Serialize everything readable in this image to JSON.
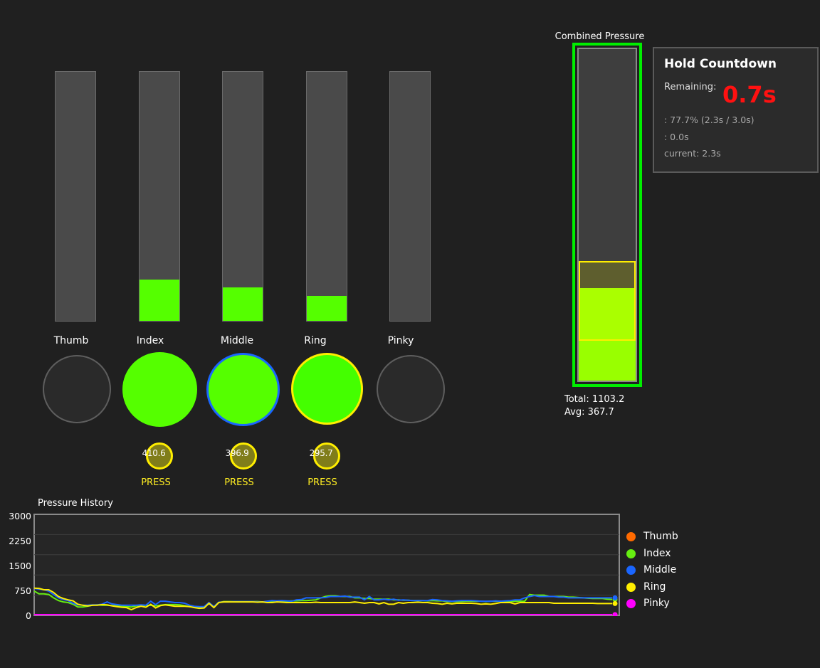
{
  "fingers": [
    {
      "name": "Thumb",
      "fill": 0.0,
      "active": false,
      "pressure": null,
      "state": null
    },
    {
      "name": "Index",
      "fill": 0.167,
      "active": true,
      "pressure": "410.6",
      "state": "PRESS"
    },
    {
      "name": "Middle",
      "fill": 0.133,
      "active": true,
      "pressure": "396.9",
      "state": "PRESS"
    },
    {
      "name": "Ring",
      "fill": 0.1,
      "active": true,
      "pressure": "295.7",
      "state": "PRESS"
    }
  ],
  "pinky": {
    "name": "Pinky",
    "fill": 0.0,
    "active": false
  },
  "combined": {
    "title": "Combined Pressure",
    "total_label": "Total: 1103.2",
    "avg_label": "Avg: 367.7",
    "fill_fraction": 0.28,
    "band_low": 0.12,
    "band_high": 0.36
  },
  "countdown": {
    "title": "Hold Countdown",
    "remaining_label": "Remaining:",
    "remaining_value": "0.7s",
    "progress_line": ": 77.7% (2.3s / 3.0s)",
    "line2": ": 0.0s",
    "current_line": "current: 2.3s"
  },
  "colors": {
    "active_fill": "#55ff00",
    "thumb": "#ff6a00",
    "index": "#66ee11",
    "middle": "#1a66ff",
    "ring": "#ffee00",
    "pinky": "#ff00ff",
    "alert": "#ff1111"
  },
  "chart_data": {
    "type": "line",
    "title": "Pressure History",
    "xlabel": "",
    "ylabel": "",
    "ylim": [
      0,
      3000
    ],
    "yticks": [
      "3000",
      "2250",
      "1500",
      "750",
      "0"
    ],
    "grid": true,
    "legend_position": "right",
    "series": [
      {
        "name": "Thumb",
        "color": "#ff6a00",
        "values": [
          0,
          0,
          0,
          0,
          0,
          0,
          0,
          0,
          0,
          0,
          0,
          0,
          0,
          0,
          0,
          0,
          0,
          0,
          0,
          0,
          0,
          0,
          0,
          0,
          0,
          0,
          0,
          0,
          0,
          0,
          0,
          0,
          0,
          0,
          0,
          0,
          0,
          0,
          0,
          0,
          0,
          0,
          0,
          0,
          0,
          0,
          0,
          0,
          0,
          0,
          0,
          0,
          0,
          0,
          0,
          0,
          0,
          0,
          0,
          0,
          0,
          0,
          0,
          0,
          0,
          0,
          0,
          0,
          0,
          0,
          0,
          0,
          0,
          0,
          0,
          0,
          0,
          0,
          0,
          0,
          0,
          0,
          0,
          0,
          0,
          0,
          0,
          0,
          0,
          0,
          0,
          0,
          0,
          0,
          0,
          0,
          0,
          0,
          0,
          0,
          0,
          0,
          0,
          0,
          0,
          0,
          0,
          0,
          0,
          0,
          0,
          0,
          0,
          0,
          0,
          0,
          0,
          0,
          0,
          0
        ]
      },
      {
        "name": "Index",
        "color": "#66ee11",
        "values": [
          720,
          640,
          640,
          620,
          520,
          440,
          400,
          380,
          330,
          250,
          250,
          270,
          300,
          310,
          300,
          300,
          290,
          280,
          270,
          260,
          250,
          280,
          280,
          290,
          300,
          280,
          300,
          320,
          320,
          320,
          310,
          290,
          260,
          250,
          240,
          250,
          350,
          260,
          380,
          410,
          410,
          410,
          410,
          410,
          410,
          410,
          410,
          400,
          400,
          410,
          410,
          420,
          420,
          430,
          430,
          440,
          440,
          450,
          460,
          520,
          560,
          580,
          580,
          560,
          560,
          560,
          520,
          520,
          500,
          500,
          480,
          480,
          480,
          480,
          460,
          460,
          450,
          450,
          440,
          440,
          440,
          430,
          440,
          430,
          430,
          410,
          410,
          410,
          410,
          420,
          420,
          420,
          420,
          410,
          420,
          420,
          420,
          420,
          410,
          420,
          420,
          420,
          620,
          600,
          600,
          600,
          560,
          560,
          560,
          560,
          540,
          540,
          530,
          520,
          510,
          500,
          500,
          500,
          480,
          470
        ]
      },
      {
        "name": "Middle",
        "color": "#1a66ff",
        "values": [
          800,
          780,
          760,
          720,
          620,
          520,
          470,
          440,
          360,
          310,
          300,
          300,
          310,
          310,
          330,
          400,
          340,
          320,
          300,
          300,
          300,
          300,
          310,
          300,
          420,
          320,
          420,
          420,
          400,
          380,
          380,
          360,
          300,
          270,
          260,
          260,
          380,
          260,
          390,
          400,
          400,
          410,
          410,
          410,
          410,
          410,
          400,
          400,
          420,
          440,
          430,
          440,
          430,
          420,
          460,
          470,
          520,
          520,
          520,
          520,
          530,
          560,
          560,
          560,
          570,
          540,
          540,
          540,
          460,
          560,
          460,
          460,
          480,
          460,
          480,
          450,
          460,
          450,
          440,
          440,
          440,
          440,
          470,
          460,
          440,
          430,
          420,
          430,
          440,
          440,
          440,
          430,
          420,
          420,
          420,
          430,
          420,
          430,
          440,
          460,
          460,
          520,
          560,
          590,
          560,
          560,
          560,
          560,
          540,
          540,
          520,
          520,
          520,
          520,
          520,
          520,
          520,
          520,
          520,
          520
        ]
      },
      {
        "name": "Ring",
        "color": "#ffee00",
        "values": [
          810,
          800,
          760,
          760,
          680,
          560,
          500,
          460,
          430,
          330,
          300,
          280,
          300,
          300,
          320,
          310,
          280,
          260,
          240,
          230,
          170,
          230,
          270,
          240,
          330,
          220,
          290,
          310,
          290,
          270,
          270,
          270,
          260,
          230,
          210,
          220,
          360,
          230,
          380,
          400,
          400,
          400,
          400,
          400,
          400,
          400,
          390,
          400,
          380,
          380,
          400,
          390,
          380,
          380,
          380,
          380,
          380,
          380,
          390,
          380,
          380,
          380,
          380,
          380,
          380,
          380,
          400,
          380,
          360,
          380,
          380,
          340,
          380,
          330,
          330,
          380,
          360,
          380,
          380,
          390,
          380,
          380,
          360,
          350,
          330,
          360,
          340,
          360,
          360,
          360,
          360,
          350,
          330,
          340,
          330,
          350,
          380,
          380,
          380,
          340,
          380,
          380,
          380,
          380,
          380,
          380,
          380,
          360,
          360,
          360,
          360,
          360,
          360,
          360,
          360,
          360,
          350,
          350,
          350,
          350
        ]
      },
      {
        "name": "Pinky",
        "color": "#ff00ff",
        "values": [
          20,
          20,
          20,
          20,
          20,
          20,
          20,
          20,
          20,
          20,
          20,
          20,
          20,
          20,
          20,
          20,
          20,
          20,
          20,
          20,
          20,
          20,
          20,
          20,
          20,
          20,
          20,
          20,
          20,
          20,
          20,
          20,
          20,
          20,
          20,
          20,
          20,
          20,
          20,
          20,
          20,
          20,
          20,
          20,
          20,
          20,
          20,
          20,
          20,
          20,
          20,
          20,
          20,
          20,
          20,
          20,
          20,
          20,
          20,
          20,
          20,
          20,
          20,
          20,
          20,
          20,
          20,
          20,
          20,
          20,
          20,
          20,
          20,
          20,
          20,
          20,
          20,
          20,
          20,
          20,
          20,
          20,
          20,
          20,
          20,
          20,
          20,
          20,
          20,
          20,
          20,
          20,
          20,
          20,
          20,
          20,
          20,
          20,
          20,
          20,
          20,
          20,
          20,
          20,
          20,
          20,
          20,
          20,
          20,
          20,
          20,
          20,
          20,
          20,
          20,
          20,
          20,
          20,
          20,
          20
        ]
      }
    ]
  }
}
